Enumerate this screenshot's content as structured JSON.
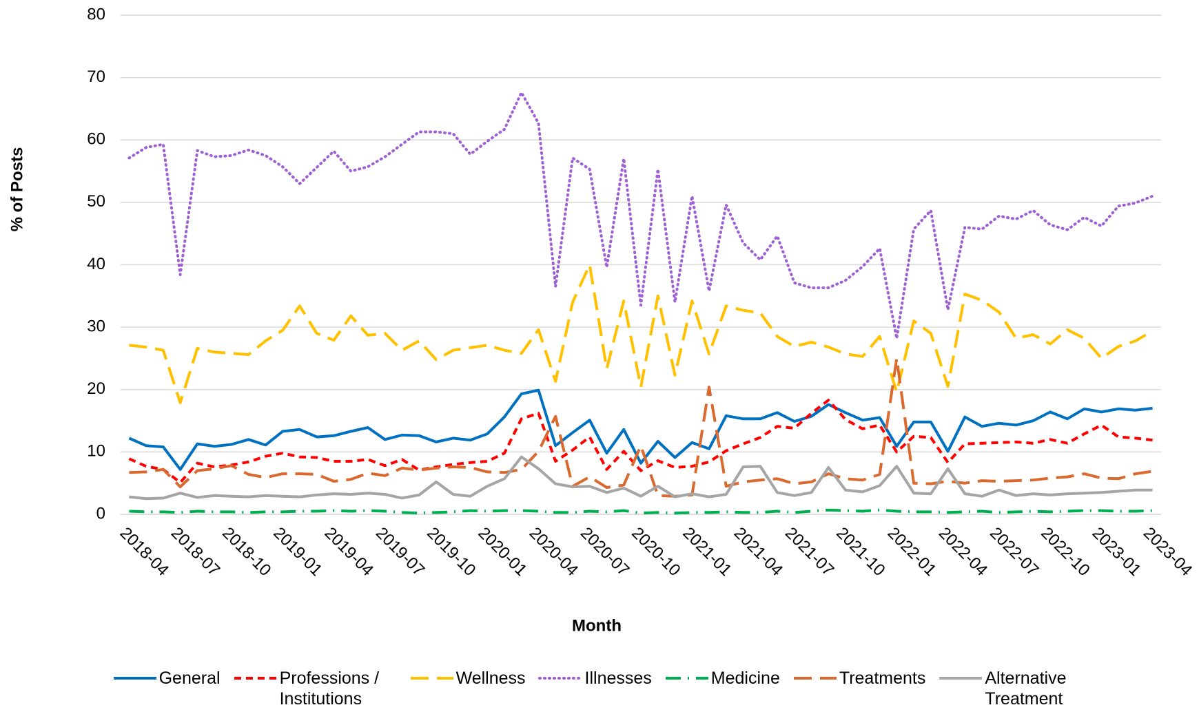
{
  "chart_data": {
    "type": "line",
    "y_label": "% of Posts",
    "x_label": "Month",
    "categories": [
      "2018-04",
      null,
      null,
      "2018-07",
      null,
      null,
      "2018-10",
      null,
      null,
      "2019-01",
      null,
      null,
      "2019-04",
      null,
      null,
      "2019-07",
      null,
      null,
      "2019-10",
      null,
      null,
      "2020-01",
      null,
      null,
      "2020-04",
      null,
      null,
      "2020-07",
      null,
      null,
      "2020-10",
      null,
      null,
      "2021-01",
      null,
      null,
      "2021-04",
      null,
      null,
      "2021-07",
      null,
      null,
      "2021-10",
      null,
      null,
      "2022-01",
      null,
      null,
      "2022-04",
      null,
      null,
      "2022-07",
      null,
      null,
      "2022-10",
      null,
      null,
      "2023-01",
      null,
      null,
      "2023-04"
    ],
    "ylim": [
      0,
      80
    ],
    "yticks": [
      0,
      10,
      20,
      30,
      40,
      50,
      60,
      70,
      80
    ],
    "grid": true,
    "legend": "bottom",
    "series": [
      {
        "name": "General",
        "color": "#0070c0",
        "line_style": "solid",
        "values": [
          12.2,
          11.0,
          10.8,
          7.2,
          11.3,
          10.9,
          11.2,
          12.0,
          11.1,
          13.3,
          13.6,
          12.4,
          12.6,
          13.3,
          13.9,
          12.0,
          12.7,
          12.6,
          11.6,
          12.2,
          11.9,
          12.9,
          15.6,
          19.3,
          19.9,
          11.0,
          13.1,
          15.1,
          9.8,
          13.6,
          8.2,
          11.7,
          9.1,
          11.5,
          10.5,
          15.8,
          15.3,
          15.3,
          16.3,
          14.9,
          15.7,
          17.6,
          16.3,
          15.1,
          15.5,
          10.9,
          14.8,
          14.8,
          10.1,
          15.6,
          14.1,
          14.6,
          14.3,
          15.0,
          16.4,
          15.3,
          16.9,
          16.4,
          16.9,
          16.7,
          17.0
        ]
      },
      {
        "name": "Professions / Institutions",
        "color": "#ff0000",
        "line_style": "dashed",
        "values": [
          8.9,
          7.7,
          7.2,
          5.1,
          8.2,
          7.6,
          7.9,
          8.4,
          9.3,
          9.8,
          9.2,
          9.1,
          8.5,
          8.5,
          8.8,
          7.8,
          8.8,
          7.1,
          7.6,
          8.0,
          8.3,
          8.5,
          9.8,
          15.3,
          16.2,
          8.5,
          10.3,
          12.4,
          7.2,
          10.1,
          7.0,
          8.6,
          7.5,
          7.7,
          8.4,
          10.2,
          11.3,
          12.3,
          14.1,
          13.8,
          16.2,
          18.3,
          15.2,
          13.7,
          14.3,
          10.0,
          12.5,
          12.3,
          8.3,
          11.3,
          11.4,
          11.5,
          11.6,
          11.4,
          12.0,
          11.4,
          12.9,
          14.3,
          12.4,
          12.2,
          11.9
        ]
      },
      {
        "name": "Wellness",
        "color": "#ffc000",
        "line_style": "long-dash",
        "values": [
          27.1,
          26.8,
          26.3,
          17.9,
          26.6,
          26.0,
          25.8,
          25.6,
          27.8,
          29.5,
          33.4,
          29.0,
          27.9,
          31.8,
          28.7,
          29.0,
          26.3,
          27.8,
          24.8,
          26.3,
          26.7,
          27.1,
          26.3,
          25.8,
          29.6,
          21.3,
          34.0,
          40.0,
          23.3,
          34.2,
          20.4,
          35.0,
          22.3,
          34.2,
          25.7,
          33.4,
          32.7,
          32.3,
          28.5,
          26.9,
          27.6,
          26.8,
          25.7,
          25.3,
          28.5,
          19.6,
          31.0,
          29.0,
          20.5,
          35.3,
          34.3,
          32.4,
          28.2,
          28.8,
          27.3,
          29.6,
          28.2,
          25.0,
          26.9,
          27.8,
          29.4
        ]
      },
      {
        "name": "Illnesses",
        "color": "#9e5fd4",
        "line_style": "dotted",
        "values": [
          57.1,
          58.8,
          59.3,
          38.4,
          58.3,
          57.3,
          57.5,
          58.4,
          57.5,
          55.7,
          53.0,
          55.6,
          58.2,
          55.0,
          55.7,
          57.3,
          59.3,
          61.3,
          61.3,
          61.0,
          57.7,
          59.8,
          61.7,
          67.6,
          62.7,
          36.5,
          57.1,
          55.3,
          39.6,
          57.0,
          33.5,
          55.3,
          34.0,
          51.0,
          35.8,
          49.6,
          43.5,
          40.8,
          44.6,
          37.1,
          36.3,
          36.3,
          37.5,
          39.7,
          42.6,
          28.2,
          45.7,
          48.7,
          32.8,
          46.0,
          45.7,
          47.8,
          47.3,
          48.7,
          46.4,
          45.6,
          47.6,
          46.2,
          49.4,
          49.9,
          51.0
        ]
      },
      {
        "name": "Medicine",
        "color": "#00b050",
        "line_style": "dash-dot",
        "values": [
          0.5,
          0.4,
          0.4,
          0.3,
          0.5,
          0.4,
          0.4,
          0.3,
          0.4,
          0.4,
          0.5,
          0.5,
          0.6,
          0.5,
          0.6,
          0.5,
          0.3,
          0.2,
          0.3,
          0.4,
          0.6,
          0.5,
          0.6,
          0.6,
          0.5,
          0.3,
          0.3,
          0.5,
          0.4,
          0.6,
          0.2,
          0.3,
          0.2,
          0.3,
          0.3,
          0.4,
          0.3,
          0.3,
          0.5,
          0.3,
          0.5,
          0.7,
          0.6,
          0.5,
          0.7,
          0.5,
          0.4,
          0.4,
          0.3,
          0.4,
          0.5,
          0.3,
          0.4,
          0.5,
          0.4,
          0.5,
          0.6,
          0.6,
          0.5,
          0.5,
          0.6
        ]
      },
      {
        "name": "Treatments",
        "color": "#d9692e",
        "line_style": "long-dash",
        "values": [
          6.7,
          6.8,
          7.2,
          4.4,
          7.0,
          7.3,
          7.8,
          6.4,
          5.9,
          6.5,
          6.5,
          6.4,
          5.3,
          5.6,
          6.6,
          6.2,
          7.4,
          7.1,
          7.4,
          7.6,
          7.5,
          6.8,
          6.7,
          7.2,
          10.1,
          15.7,
          4.5,
          6.0,
          4.3,
          4.7,
          11.0,
          3.0,
          2.9,
          3.1,
          20.4,
          4.5,
          5.2,
          5.5,
          5.7,
          4.9,
          5.2,
          6.5,
          5.7,
          5.5,
          6.4,
          25.0,
          5.0,
          4.9,
          5.3,
          5.0,
          5.4,
          5.3,
          5.4,
          5.5,
          5.8,
          6.0,
          6.5,
          5.8,
          5.7,
          6.5,
          6.9
        ]
      },
      {
        "name": "Alternative Treatment",
        "color": "#a5a5a5",
        "line_style": "solid",
        "values": [
          2.8,
          2.5,
          2.6,
          3.4,
          2.7,
          3.0,
          2.9,
          2.8,
          3.0,
          2.9,
          2.8,
          3.1,
          3.3,
          3.2,
          3.4,
          3.2,
          2.6,
          3.1,
          5.2,
          3.2,
          2.9,
          4.5,
          5.7,
          9.2,
          7.3,
          4.9,
          4.4,
          4.5,
          3.5,
          4.2,
          2.9,
          4.5,
          2.8,
          3.3,
          2.8,
          3.2,
          7.6,
          7.7,
          3.5,
          3.0,
          3.5,
          7.5,
          3.9,
          3.6,
          4.6,
          7.7,
          3.4,
          3.3,
          7.3,
          3.3,
          2.9,
          3.9,
          3.0,
          3.3,
          3.1,
          3.3,
          3.4,
          3.5,
          3.7,
          3.9,
          3.9
        ]
      }
    ]
  }
}
